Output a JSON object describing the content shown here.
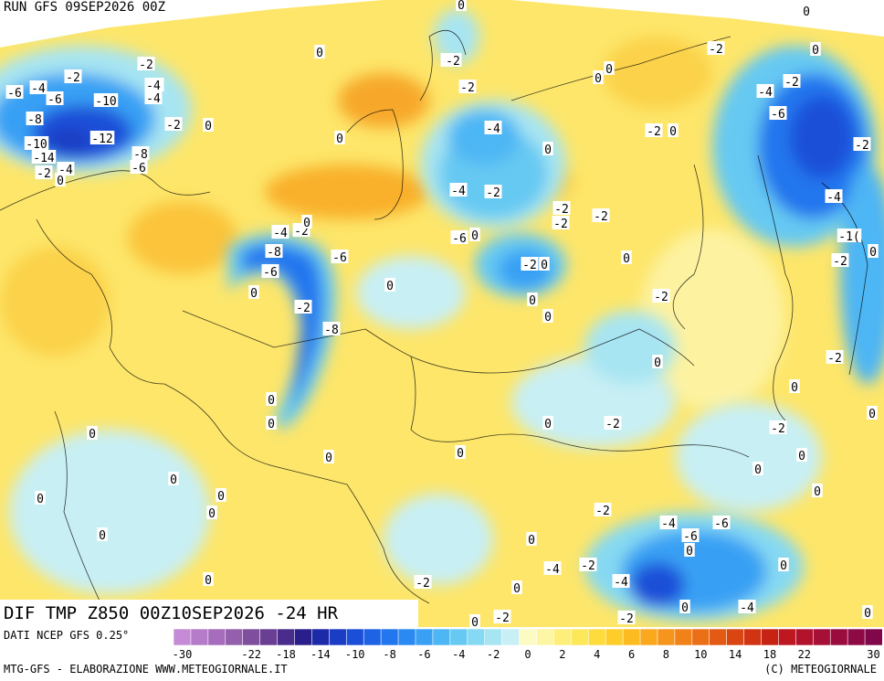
{
  "header": {
    "run": "RUN GFS 09SEP2026 00Z",
    "product": "DIF TMP Z850 00Z10SEP2026 -24 HR"
  },
  "footer": {
    "source": "DATI NCEP GFS 0.25°",
    "credit_left": "MTG-GFS - ELABORAZIONE WWW.METEOGIORNALE.IT",
    "credit_right": "(C) METEOGIORNALE"
  },
  "color_scale": {
    "values": [
      -30,
      -28,
      -26,
      -24,
      -22,
      -20,
      -18,
      -16,
      -14,
      -12,
      -10,
      -9,
      -8,
      -7,
      -6,
      -5,
      -4,
      -3,
      -2,
      -1,
      0,
      1,
      2,
      3,
      4,
      5,
      6,
      7,
      8,
      9,
      10,
      12,
      14,
      16,
      18,
      20,
      22,
      24,
      26,
      28,
      30
    ],
    "tick_labels": [
      "-30",
      "-22",
      "-18",
      "-14",
      "-10",
      "-8",
      "-6",
      "-4",
      "-2",
      "0",
      "2",
      "4",
      "6",
      "8",
      "10",
      "14",
      "18",
      "22",
      "30"
    ],
    "colors": [
      "#c58bd6",
      "#b57cc9",
      "#a56dbb",
      "#9460ad",
      "#7f4f9e",
      "#6a3f93",
      "#4a2c8c",
      "#2a1f8a",
      "#1d2aa8",
      "#1b3cc4",
      "#1c4fd8",
      "#1e63e6",
      "#2276ee",
      "#2a8af2",
      "#39a0f4",
      "#4db6f4",
      "#66c9f2",
      "#86d9f2",
      "#a7e5f2",
      "#c8eff4",
      "#fdfbc4",
      "#fdf6a4",
      "#fdef7a",
      "#fde75a",
      "#fedc3e",
      "#fecd2a",
      "#fdbb22",
      "#faa81e",
      "#f6951c",
      "#f08219",
      "#ea6f16",
      "#e25a14",
      "#d94612",
      "#d03412",
      "#c72314",
      "#bd1720",
      "#b2122c",
      "#a60f36",
      "#9a0c3e",
      "#8d0a44",
      "#80084a"
    ]
  },
  "map_labels": [
    {
      "t": "0"
    },
    {
      "t": "-2"
    },
    {
      "t": "0"
    },
    {
      "t": "-4"
    },
    {
      "t": "-6"
    },
    {
      "t": "-2"
    },
    {
      "t": "-4"
    },
    {
      "t": "-6"
    },
    {
      "t": "-10"
    },
    {
      "t": "-2"
    },
    {
      "t": "-4"
    },
    {
      "t": "-4"
    },
    {
      "t": "-8"
    },
    {
      "t": "-10"
    },
    {
      "t": "-12"
    },
    {
      "t": "-14"
    },
    {
      "t": "-8"
    },
    {
      "t": "-6"
    },
    {
      "t": "-2"
    },
    {
      "t": "-4"
    },
    {
      "t": "-2"
    },
    {
      "t": "0"
    },
    {
      "t": "0"
    },
    {
      "t": "0"
    },
    {
      "t": "0"
    },
    {
      "t": "-2"
    },
    {
      "t": "-2"
    },
    {
      "t": "0"
    },
    {
      "t": "0"
    },
    {
      "t": "-4"
    },
    {
      "t": "0"
    },
    {
      "t": "-4"
    },
    {
      "t": "-6"
    },
    {
      "t": "-2"
    },
    {
      "t": "-2"
    },
    {
      "t": "-2"
    },
    {
      "t": "0"
    },
    {
      "t": "-2"
    },
    {
      "t": "-2"
    },
    {
      "t": "-2"
    },
    {
      "t": "-6"
    },
    {
      "t": "0"
    },
    {
      "t": "0"
    },
    {
      "t": "0"
    },
    {
      "t": "0"
    },
    {
      "t": "-2"
    },
    {
      "t": "-2"
    },
    {
      "t": "0"
    },
    {
      "t": "0"
    },
    {
      "t": "-4"
    },
    {
      "t": "-2"
    },
    {
      "t": "-8"
    },
    {
      "t": "-6"
    },
    {
      "t": "-4"
    },
    {
      "t": "-6"
    },
    {
      "t": "-2"
    },
    {
      "t": "0"
    },
    {
      "t": "-2"
    },
    {
      "t": "-8"
    },
    {
      "t": "0"
    },
    {
      "t": "-4"
    },
    {
      "t": "-2"
    },
    {
      "t": "0"
    },
    {
      "t": "0"
    },
    {
      "t": "0"
    },
    {
      "t": "0"
    },
    {
      "t": "0"
    },
    {
      "t": "0"
    },
    {
      "t": "0"
    },
    {
      "t": "0"
    },
    {
      "t": "0"
    },
    {
      "t": "0"
    },
    {
      "t": "0"
    },
    {
      "t": "0"
    },
    {
      "t": "0"
    },
    {
      "t": "-2"
    },
    {
      "t": "0"
    },
    {
      "t": "0"
    },
    {
      "t": "-2"
    },
    {
      "t": "0"
    },
    {
      "t": "0"
    },
    {
      "t": "-2"
    },
    {
      "t": "0"
    },
    {
      "t": "0"
    },
    {
      "t": "0"
    },
    {
      "t": "0"
    },
    {
      "t": "-2"
    },
    {
      "t": "-4"
    },
    {
      "t": "-2"
    },
    {
      "t": "0"
    },
    {
      "t": "-2"
    },
    {
      "t": "-4"
    },
    {
      "t": "-6"
    },
    {
      "t": "0"
    },
    {
      "t": "-4"
    },
    {
      "t": "-4"
    },
    {
      "t": "-6"
    },
    {
      "t": "0"
    },
    {
      "t": "0"
    },
    {
      "t": "-2"
    },
    {
      "t": "0"
    },
    {
      "t": "0"
    },
    {
      "t": "-2"
    },
    {
      "t": "-2"
    },
    {
      "t": "0"
    },
    {
      "t": "-1("
    },
    {
      "t": "-6"
    },
    {
      "t": "-6"
    }
  ]
}
